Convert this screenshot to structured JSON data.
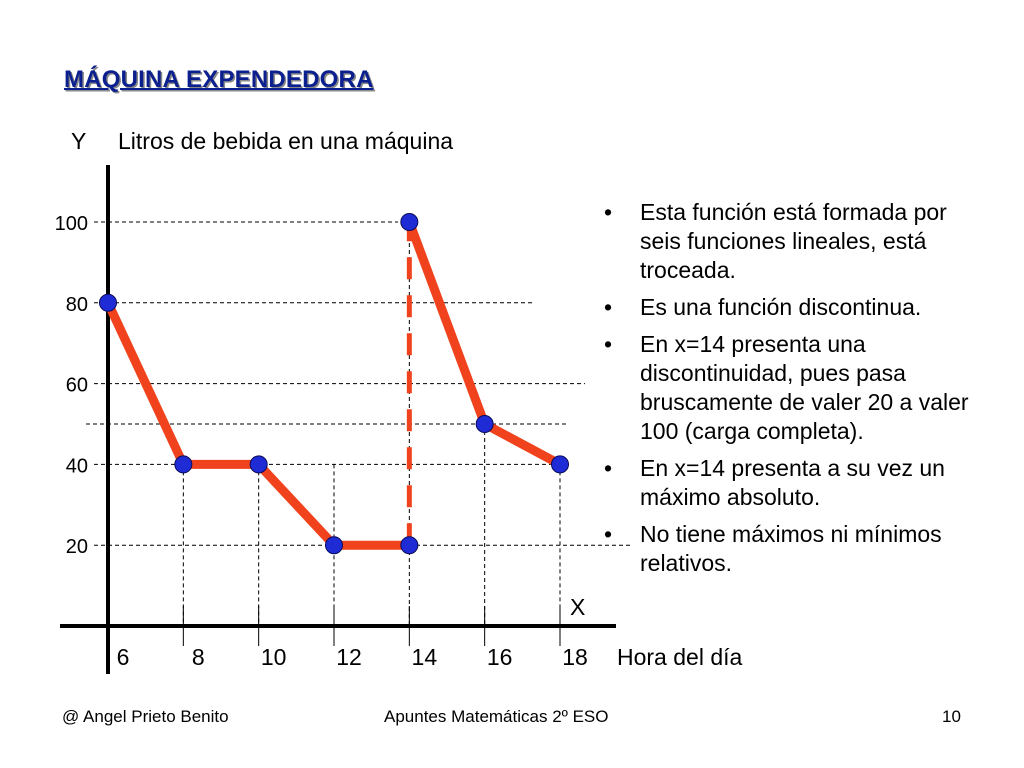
{
  "slide": {
    "title": "MÁQUINA EXPENDEDORA"
  },
  "chart_data": {
    "type": "line",
    "title": "Litros de bebida en una máquina",
    "xlabel": "Hora del día",
    "ylabel": "Litros de bebida en una máquina",
    "x_axis_letter": "X",
    "y_axis_letter": "Y",
    "x_ticks": [
      6,
      8,
      10,
      12,
      14,
      16,
      18
    ],
    "y_ticks": [
      20,
      40,
      60,
      80,
      100
    ],
    "xlim": [
      6,
      18
    ],
    "ylim": [
      0,
      100
    ],
    "grid": true,
    "segments": [
      {
        "from": [
          6,
          80
        ],
        "to": [
          8,
          40
        ],
        "style": "solid"
      },
      {
        "from": [
          8,
          40
        ],
        "to": [
          10,
          40
        ],
        "style": "solid"
      },
      {
        "from": [
          10,
          40
        ],
        "to": [
          12,
          20
        ],
        "style": "solid"
      },
      {
        "from": [
          12,
          20
        ],
        "to": [
          14,
          20
        ],
        "style": "solid"
      },
      {
        "from": [
          14,
          20
        ],
        "to": [
          14,
          100
        ],
        "style": "dashed"
      },
      {
        "from": [
          14,
          100
        ],
        "to": [
          16,
          50
        ],
        "style": "solid"
      },
      {
        "from": [
          16,
          50
        ],
        "to": [
          18,
          40
        ],
        "style": "solid"
      }
    ],
    "points": [
      {
        "x": 6,
        "y": 80
      },
      {
        "x": 8,
        "y": 40
      },
      {
        "x": 10,
        "y": 40
      },
      {
        "x": 12,
        "y": 20
      },
      {
        "x": 14,
        "y": 20
      },
      {
        "x": 14,
        "y": 100
      },
      {
        "x": 16,
        "y": 50
      },
      {
        "x": 18,
        "y": 40
      }
    ],
    "colors": {
      "line": "#f0421c",
      "point": "#1f2cd6",
      "title": "#0b1f8f"
    }
  },
  "bullets": [
    "Esta función está formada por seis funciones lineales, está troceada.",
    "Es una función discontinua.",
    "En x=14 presenta una discontinuidad, pues pasa bruscamente de valer 20 a valer 100 (carga completa).",
    "En x=14 presenta a su vez un máximo absoluto.",
    "No tiene máximos ni mínimos relativos."
  ],
  "footer": {
    "author": "@  Angel Prieto Benito",
    "course": "Apuntes Matemáticas 2º ESO",
    "page": "10"
  }
}
